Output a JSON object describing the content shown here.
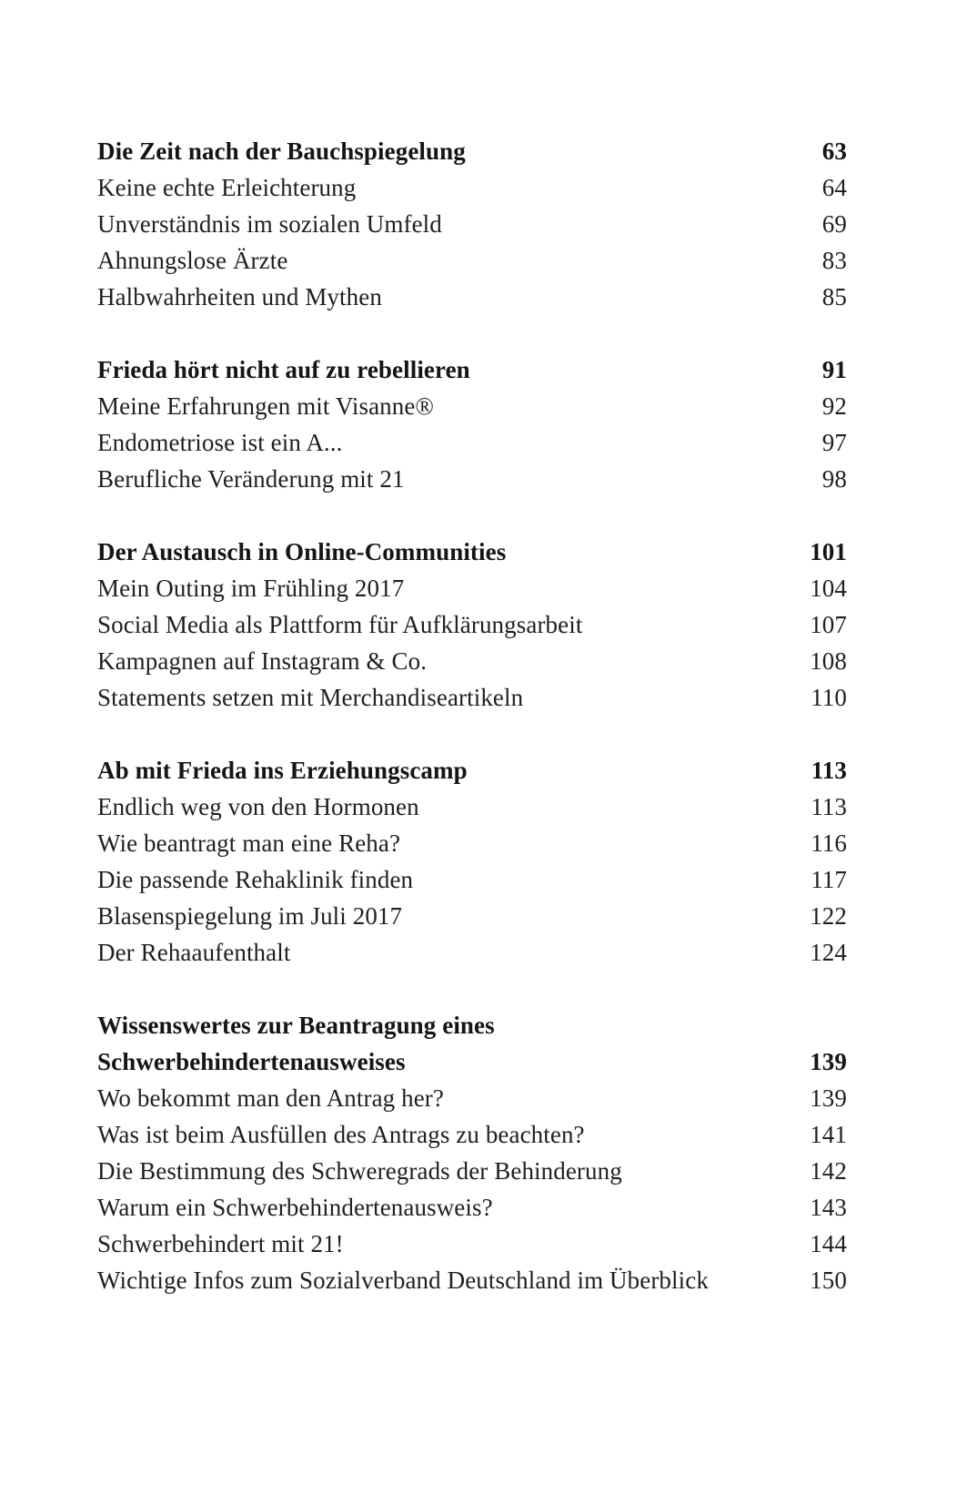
{
  "toc": {
    "sections": [
      {
        "heading": {
          "label": "Die Zeit nach der Bauchspiegelung",
          "page": "63"
        },
        "entries": [
          {
            "label": "Keine echte Erleichterung",
            "page": "64"
          },
          {
            "label": "Unverständnis im sozialen Umfeld",
            "page": "69"
          },
          {
            "label": "Ahnungslose Ärzte",
            "page": "83"
          },
          {
            "label": "Halbwahrheiten und Mythen",
            "page": "85"
          }
        ]
      },
      {
        "heading": {
          "label": "Frieda hört nicht auf zu rebellieren",
          "page": "91"
        },
        "entries": [
          {
            "label": "Meine Erfahrungen mit Visanne®",
            "page": "92"
          },
          {
            "label": "Endometriose ist ein A...",
            "page": "97"
          },
          {
            "label": "Berufliche Veränderung mit 21",
            "page": "98"
          }
        ]
      },
      {
        "heading": {
          "label": "Der Austausch in Online-Communities",
          "page": "101"
        },
        "entries": [
          {
            "label": "Mein Outing im Frühling 2017",
            "page": "104"
          },
          {
            "label": "Social Media als Plattform für Aufklärungsarbeit",
            "page": "107"
          },
          {
            "label": "Kampagnen auf Instagram & Co.",
            "page": "108"
          },
          {
            "label": "Statements setzen mit Merchandiseartikeln",
            "page": "110"
          }
        ]
      },
      {
        "heading": {
          "label": "Ab mit Frieda ins Erziehungscamp",
          "page": "113"
        },
        "entries": [
          {
            "label": "Endlich weg von den Hormonen",
            "page": "113"
          },
          {
            "label": "Wie beantragt man eine Reha?",
            "page": "116"
          },
          {
            "label": "Die passende Rehaklinik finden",
            "page": "117"
          },
          {
            "label": "Blasenspiegelung im Juli 2017",
            "page": "122"
          },
          {
            "label": "Der Rehaaufenthalt",
            "page": "124"
          }
        ]
      },
      {
        "heading": {
          "label": "Wissenswertes zur Beantragung eines Schwerbehindertenausweises",
          "page": "139"
        },
        "entries": [
          {
            "label": "Wo bekommt man den Antrag her?",
            "page": "139"
          },
          {
            "label": "Was ist beim Ausfüllen des Antrags zu beachten?",
            "page": "141"
          },
          {
            "label": "Die Bestimmung des Schweregrads der Behinderung",
            "page": "142"
          },
          {
            "label": "Warum ein Schwerbehindertenausweis?",
            "page": "143"
          },
          {
            "label": "Schwerbehindert mit 21!",
            "page": "144"
          },
          {
            "label": "Wichtige Infos zum Sozialverband Deutschland im Überblick",
            "page": "150"
          }
        ]
      }
    ]
  }
}
